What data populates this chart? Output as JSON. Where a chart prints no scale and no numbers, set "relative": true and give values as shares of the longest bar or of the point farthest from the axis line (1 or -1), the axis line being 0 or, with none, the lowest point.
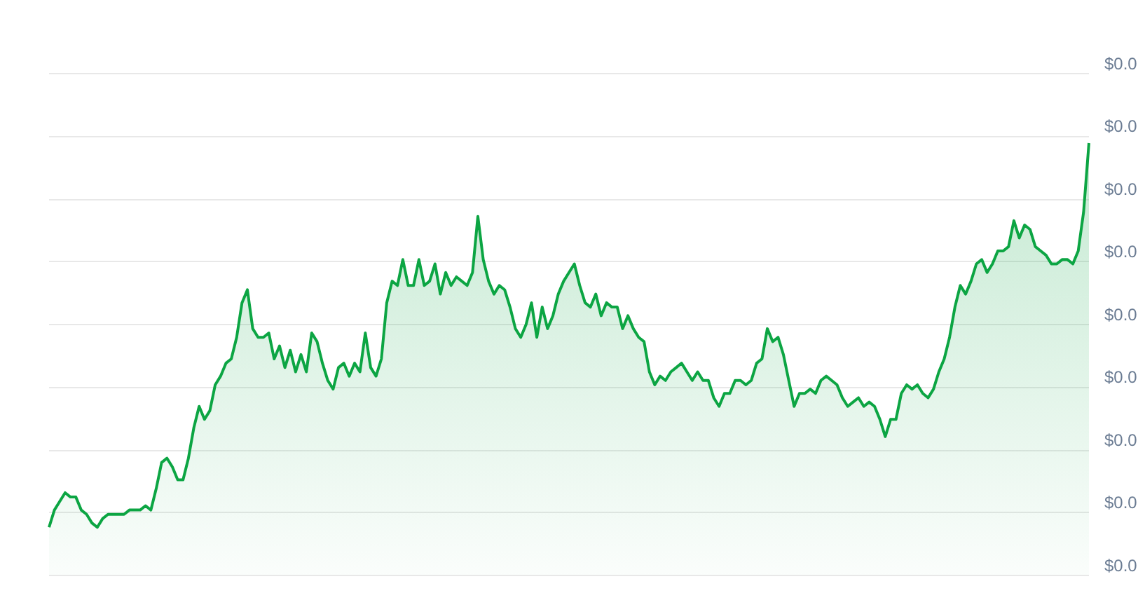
{
  "chart_data": {
    "type": "area",
    "relative": true,
    "categories": [
      null,
      null,
      null,
      null,
      null,
      null,
      null,
      null,
      null,
      null,
      null,
      null,
      null,
      null,
      null,
      null,
      null,
      null,
      null,
      null,
      null,
      null,
      null,
      null,
      null,
      null,
      null,
      null,
      null,
      null,
      null,
      null,
      null,
      null,
      null,
      null,
      null,
      null,
      null,
      null,
      null,
      null,
      null,
      null,
      null,
      null,
      null,
      null,
      null,
      null,
      null,
      null,
      null,
      null,
      null,
      null,
      null,
      null,
      null,
      null,
      null,
      null,
      null,
      null,
      null,
      null,
      null,
      null,
      null,
      null,
      null,
      null,
      null,
      null,
      null,
      null,
      null,
      null,
      null,
      null,
      null,
      null,
      null,
      null,
      null,
      null,
      null,
      null,
      null,
      null,
      null,
      null,
      null,
      null,
      null,
      null,
      null,
      null,
      null,
      null,
      null,
      null,
      null,
      null,
      null,
      null,
      null,
      null,
      null,
      null,
      null,
      null,
      null,
      null,
      null,
      null,
      null,
      null,
      null,
      null,
      null,
      null,
      null,
      null,
      null,
      null,
      null,
      null,
      null,
      null,
      null,
      null,
      null,
      null,
      null,
      null,
      null,
      null,
      null,
      null,
      null,
      null,
      null,
      null,
      null,
      null,
      null,
      null,
      null,
      null,
      null,
      null,
      null,
      null,
      null,
      null,
      null,
      null,
      null,
      null,
      null,
      null,
      null,
      null,
      null,
      null,
      null,
      null,
      null,
      null,
      null,
      null,
      null,
      null,
      null,
      null,
      null,
      null,
      null,
      null,
      null,
      null,
      null,
      null,
      null,
      null,
      null,
      null,
      null,
      null,
      null,
      null,
      null,
      null,
      null
    ],
    "series": [
      {
        "color": "#0ca543",
        "values": [
          0.11,
          0.15,
          0.17,
          0.19,
          0.18,
          0.18,
          0.15,
          0.14,
          0.12,
          0.11,
          0.13,
          0.14,
          0.14,
          0.14,
          0.14,
          0.15,
          0.15,
          0.15,
          0.16,
          0.15,
          0.2,
          0.26,
          0.27,
          0.25,
          0.22,
          0.22,
          0.27,
          0.34,
          0.39,
          0.36,
          0.38,
          0.44,
          0.46,
          0.49,
          0.5,
          0.55,
          0.63,
          0.66,
          0.57,
          0.55,
          0.55,
          0.56,
          0.5,
          0.53,
          0.48,
          0.52,
          0.47,
          0.51,
          0.47,
          0.56,
          0.54,
          0.49,
          0.45,
          0.43,
          0.48,
          0.49,
          0.46,
          0.49,
          0.47,
          0.56,
          0.48,
          0.46,
          0.5,
          0.63,
          0.68,
          0.67,
          0.73,
          0.67,
          0.67,
          0.73,
          0.67,
          0.68,
          0.72,
          0.65,
          0.7,
          0.67,
          0.69,
          0.68,
          0.67,
          0.7,
          0.83,
          0.73,
          0.68,
          0.65,
          0.67,
          0.66,
          0.62,
          0.57,
          0.55,
          0.58,
          0.63,
          0.55,
          0.62,
          0.57,
          0.6,
          0.65,
          0.68,
          0.7,
          0.72,
          0.67,
          0.63,
          0.62,
          0.65,
          0.6,
          0.63,
          0.62,
          0.62,
          0.57,
          0.6,
          0.57,
          0.55,
          0.54,
          0.47,
          0.44,
          0.46,
          0.45,
          0.47,
          0.48,
          0.49,
          0.47,
          0.45,
          0.47,
          0.45,
          0.45,
          0.41,
          0.39,
          0.42,
          0.42,
          0.45,
          0.45,
          0.44,
          0.45,
          0.49,
          0.5,
          0.57,
          0.54,
          0.55,
          0.51,
          0.45,
          0.39,
          0.42,
          0.42,
          0.43,
          0.42,
          0.45,
          0.46,
          0.45,
          0.44,
          0.41,
          0.39,
          0.4,
          0.41,
          0.39,
          0.4,
          0.39,
          0.36,
          0.32,
          0.36,
          0.36,
          0.42,
          0.44,
          0.43,
          0.44,
          0.42,
          0.41,
          0.43,
          0.47,
          0.5,
          0.55,
          0.62,
          0.67,
          0.65,
          0.68,
          0.72,
          0.73,
          0.7,
          0.72,
          0.75,
          0.75,
          0.76,
          0.82,
          0.78,
          0.81,
          0.8,
          0.76,
          0.75,
          0.74,
          0.72,
          0.72,
          0.73,
          0.73,
          0.72,
          0.75,
          0.84,
          1
        ]
      }
    ],
    "annotations": [
      "$0.0",
      "$0.0",
      "$0.0",
      "$0.0",
      "$0.0",
      "$0.0",
      "$0.0",
      "$0.0",
      "$0.0"
    ],
    "grid": "y",
    "legend": false,
    "marker": "none",
    "line_style": "solid"
  }
}
